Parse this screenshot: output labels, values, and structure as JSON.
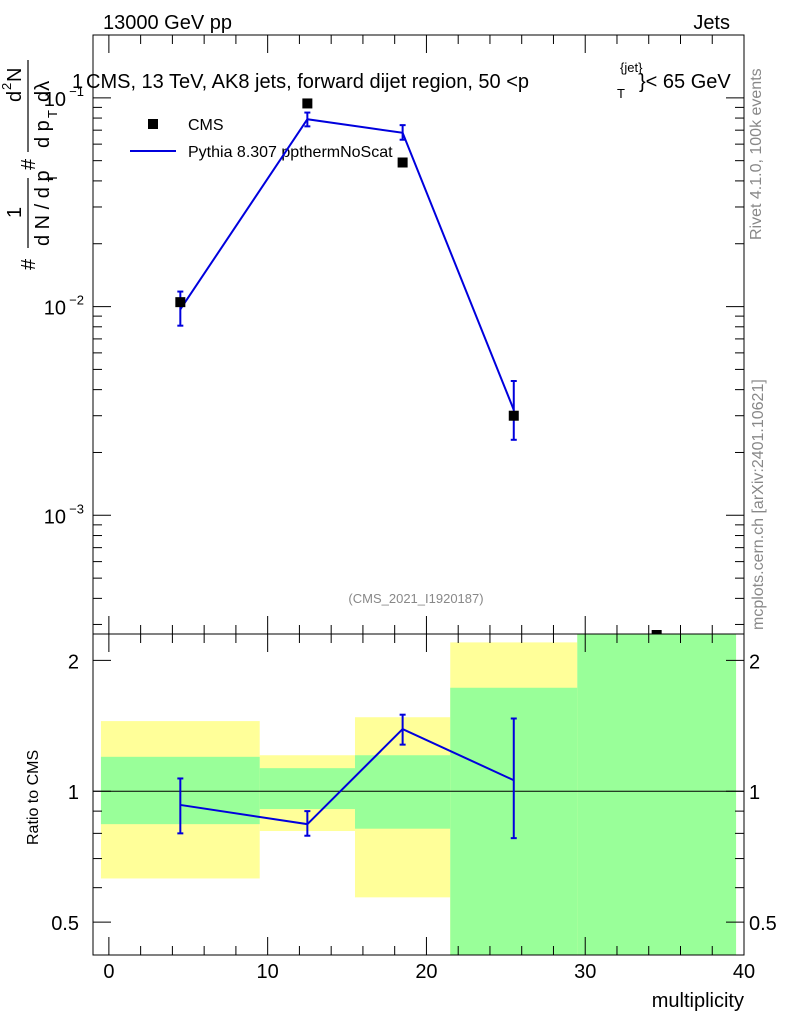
{
  "header": {
    "left": "13000 GeV pp",
    "right": "Jets"
  },
  "side_labels": {
    "rivet": "Rivet 4.1.0,  100k events",
    "mcplots": "mcplots.cern.ch [arXiv:2401.10621]"
  },
  "chart_data": [
    {
      "type": "scatter",
      "title": "CMS, 13 TeV, AK8 jets, forward dijet region, 50 < p_T^{jet} < 65 GeV",
      "title_parts": {
        "prefix": "1",
        "main": "CMS, 13 TeV, AK8 jets, forward dijet region, 50 <p",
        "sup": "{jet}",
        "sub": "T",
        "suffix": "}< 65 GeV"
      },
      "ylabel_parts": {
        "hash": "#",
        "one": "1",
        "dN": "d N / d p",
        "T": "T",
        "hash2": "#",
        "d2N": "d",
        "two": "2",
        "N": "N",
        "dp": "d p",
        "dlambda": "dλ"
      },
      "analysis_id": "(CMS_2021_I1920187)",
      "yscale": "log",
      "ylim": [
        0.00027,
        0.2
      ],
      "xlim": [
        -1,
        40
      ],
      "y_ticks": [
        {
          "value": 0.1,
          "base": "10",
          "exp": "−1"
        },
        {
          "value": 0.01,
          "base": "10",
          "exp": "−2"
        },
        {
          "value": 0.001,
          "base": "10",
          "exp": "−3"
        }
      ],
      "legend": [
        {
          "label": "CMS",
          "marker": "square",
          "color": "#000000"
        },
        {
          "label": "Pythia 8.307 ppthermNoScat",
          "marker": "line",
          "color": "#0000dd"
        }
      ],
      "series": [
        {
          "name": "CMS",
          "x": [
            4.5,
            12.5,
            18.5,
            25.5
          ],
          "y": [
            0.0105,
            0.094,
            0.049,
            0.003
          ]
        },
        {
          "name": "Pythia 8.307 ppthermNoScat",
          "x": [
            4.5,
            12.5,
            18.5,
            25.5
          ],
          "y": [
            0.0097,
            0.079,
            0.068,
            0.0032
          ],
          "err_low": [
            0.0081,
            0.073,
            0.063,
            0.0023
          ],
          "err_high": [
            0.0118,
            0.085,
            0.074,
            0.0044
          ]
        }
      ],
      "offscale_marker": {
        "x": 34.5
      }
    },
    {
      "type": "line",
      "ylabel": "Ratio to CMS",
      "xlabel": "multiplicity",
      "yscale": "log",
      "ylim": [
        0.42,
        2.3
      ],
      "xlim": [
        -1,
        40
      ],
      "x_ticks": [
        0,
        10,
        20,
        30,
        40
      ],
      "y_ticks": [
        0.5,
        1,
        2
      ],
      "y_tick_labels": [
        "0.5",
        "1",
        "2"
      ],
      "reference_line": 1,
      "bands": [
        {
          "x0": -0.5,
          "x1": 9.5,
          "yellow": [
            0.63,
            1.45
          ],
          "green": [
            0.84,
            1.2
          ]
        },
        {
          "x0": 9.5,
          "x1": 15.5,
          "yellow": [
            0.81,
            1.21
          ],
          "green": [
            0.91,
            1.13
          ]
        },
        {
          "x0": 15.5,
          "x1": 21.5,
          "yellow": [
            0.57,
            1.48
          ],
          "green": [
            0.82,
            1.21
          ]
        },
        {
          "x0": 21.5,
          "x1": 29.5,
          "yellow": [
            0.42,
            2.2
          ],
          "green": [
            0.42,
            1.73
          ]
        },
        {
          "x0": 29.5,
          "x1": 39.5,
          "yellow": [
            0.42,
            2.3
          ],
          "green": [
            0.42,
            2.3
          ]
        }
      ],
      "series": [
        {
          "name": "Pythia 8.307 ppthermNoScat / CMS",
          "x": [
            4.5,
            12.5,
            18.5,
            25.5
          ],
          "y": [
            0.93,
            0.84,
            1.39,
            1.06
          ],
          "err_low": [
            0.8,
            0.79,
            1.28,
            0.78
          ],
          "err_high": [
            1.07,
            0.9,
            1.5,
            1.47
          ]
        }
      ]
    }
  ]
}
